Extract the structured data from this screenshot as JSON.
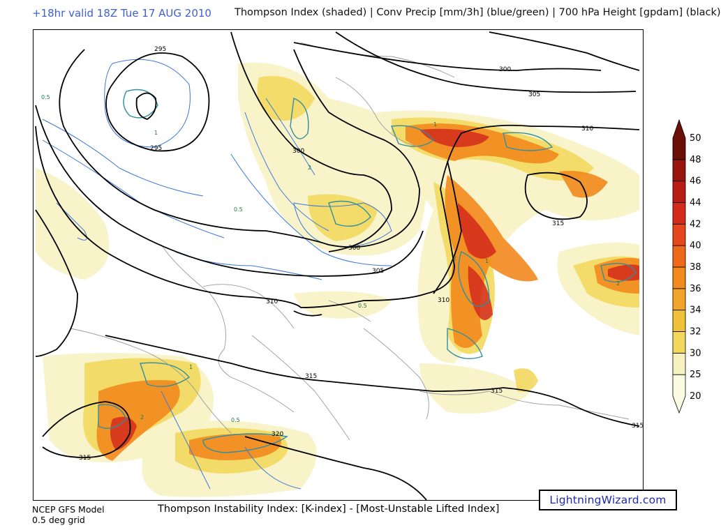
{
  "header": {
    "valid_time": "+18hr valid 18Z Tue 17 AUG 2010",
    "title": "Thompson Index (shaded) | Conv Precip [mm/3h] (blue/green) | 700 hPa Height [gpdam] (black)"
  },
  "contour_labels": {
    "h295_a": "295",
    "h295_b": "295",
    "h300_a": "300",
    "h300_b": "300",
    "h300_c": "300",
    "h305_a": "305",
    "h305_b": "305",
    "h310_a": "310",
    "h310_b": "310",
    "h310_c": "310",
    "h315_a": "315",
    "h315_b": "315",
    "h315_c": "315",
    "h315_d": "315",
    "h315_e": "315",
    "h320": "320"
  },
  "precip_labels": [
    "0.5",
    "1",
    "2",
    "0.5",
    "1",
    "2",
    "0.5",
    "1",
    "2",
    "0.5",
    "1",
    "2"
  ],
  "colorbar": {
    "levels": [
      "20",
      "25",
      "30",
      "32",
      "34",
      "36",
      "38",
      "40",
      "42",
      "44",
      "46",
      "48",
      "50"
    ],
    "colors": [
      "#fbfbe3",
      "#f7f1c0",
      "#f2d95e",
      "#efc23a",
      "#f2a32a",
      "#f28a1e",
      "#ee6a18",
      "#e5461c",
      "#d42a1c",
      "#b81c14",
      "#98160e",
      "#6a1008"
    ]
  },
  "footer": {
    "model": "NCEP GFS Model",
    "grid": "0.5 deg grid",
    "index_definition": "Thompson Instability Index: [K-index] - [Most-Unstable Lifted Index]",
    "brand": "LightningWizard.com"
  }
}
